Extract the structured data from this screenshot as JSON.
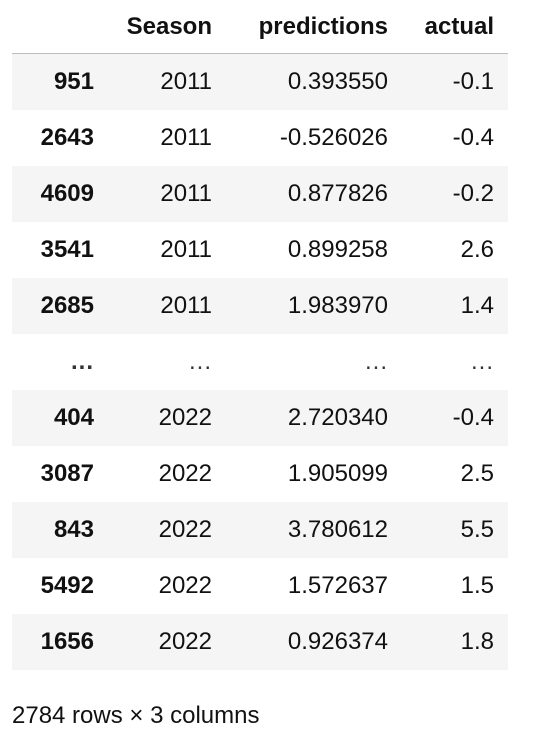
{
  "table": {
    "columns": [
      "",
      "Season",
      "predictions",
      "actual"
    ],
    "rows": [
      {
        "index": "951",
        "season": "2011",
        "predictions": "0.393550",
        "actual": "-0.1"
      },
      {
        "index": "2643",
        "season": "2011",
        "predictions": "-0.526026",
        "actual": "-0.4"
      },
      {
        "index": "4609",
        "season": "2011",
        "predictions": "0.877826",
        "actual": "-0.2"
      },
      {
        "index": "3541",
        "season": "2011",
        "predictions": "0.899258",
        "actual": "2.6"
      },
      {
        "index": "2685",
        "season": "2011",
        "predictions": "1.983970",
        "actual": "1.4"
      },
      {
        "index": "...",
        "season": "...",
        "predictions": "...",
        "actual": "..."
      },
      {
        "index": "404",
        "season": "2022",
        "predictions": "2.720340",
        "actual": "-0.4"
      },
      {
        "index": "3087",
        "season": "2022",
        "predictions": "1.905099",
        "actual": "2.5"
      },
      {
        "index": "843",
        "season": "2022",
        "predictions": "3.780612",
        "actual": "5.5"
      },
      {
        "index": "5492",
        "season": "2022",
        "predictions": "1.572637",
        "actual": "1.5"
      },
      {
        "index": "1656",
        "season": "2022",
        "predictions": "0.926374",
        "actual": "1.8"
      }
    ]
  },
  "footer": {
    "summary": "2784 rows × 3 columns"
  }
}
